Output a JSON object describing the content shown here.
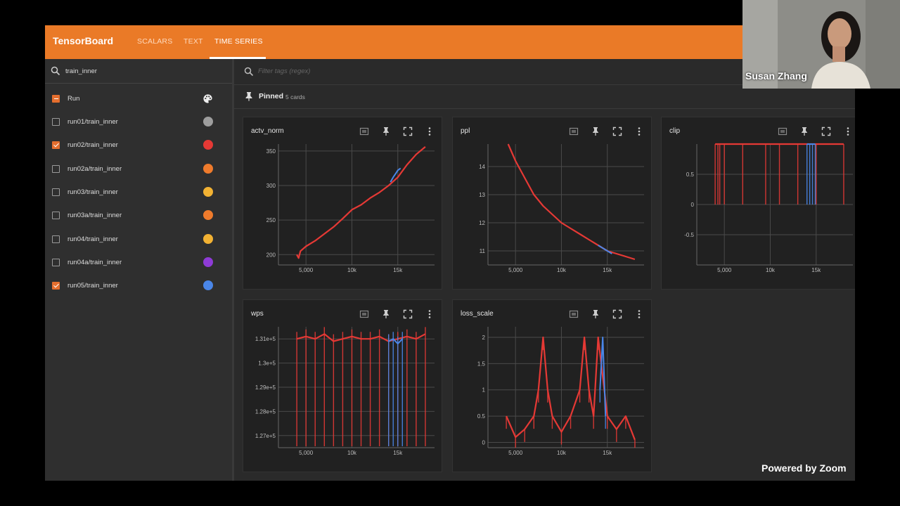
{
  "app": {
    "title": "TensorBoard",
    "tabs": [
      {
        "label": "SCALARS",
        "active": false
      },
      {
        "label": "TEXT",
        "active": false
      },
      {
        "label": "TIME SERIES",
        "active": true
      }
    ],
    "accent_color": "#ea7a27"
  },
  "sidebar": {
    "filter_value": "train_inner",
    "header_label": "Run",
    "runs": [
      {
        "label": "run01/train_inner",
        "checked": false,
        "color": "#9e9e9e"
      },
      {
        "label": "run02/train_inner",
        "checked": true,
        "color": "#e53935"
      },
      {
        "label": "run02a/train_inner",
        "checked": false,
        "color": "#ef7b2c"
      },
      {
        "label": "run03/train_inner",
        "checked": false,
        "color": "#f2b233"
      },
      {
        "label": "run03a/train_inner",
        "checked": false,
        "color": "#ef7b2c"
      },
      {
        "label": "run04/train_inner",
        "checked": false,
        "color": "#f2b233"
      },
      {
        "label": "run04a/train_inner",
        "checked": false,
        "color": "#8e3bd6"
      },
      {
        "label": "run05/train_inner",
        "checked": true,
        "color": "#4a86e8"
      }
    ]
  },
  "main": {
    "tag_filter_placeholder": "Filter tags (regex)",
    "pinned_label": "Pinned",
    "pinned_count": "5 cards"
  },
  "video": {
    "speaker_name": "Susan Zhang",
    "brand": "Powered by Zoom"
  },
  "chart_data": [
    {
      "type": "line",
      "title": "actv_norm",
      "x_ticks": [
        "5,000",
        "10k",
        "15k"
      ],
      "y_ticks": [
        "200",
        "250",
        "300",
        "350"
      ],
      "xlim": [
        2000,
        19000
      ],
      "ylim": [
        185,
        360
      ],
      "series": [
        {
          "color": "#e53935",
          "x": [
            4000,
            4200,
            4400,
            5000,
            6000,
            7000,
            8000,
            9000,
            10000,
            11000,
            12000,
            13000,
            14000,
            15000,
            16000,
            17000,
            18000
          ],
          "y": [
            200,
            195,
            205,
            212,
            220,
            230,
            240,
            252,
            265,
            272,
            282,
            290,
            300,
            312,
            330,
            345,
            356
          ]
        },
        {
          "color": "#4a86e8",
          "x": [
            14200,
            14500,
            14800,
            15000,
            15300
          ],
          "y": [
            305,
            312,
            318,
            322,
            325
          ]
        }
      ]
    },
    {
      "type": "line",
      "title": "ppl",
      "x_ticks": [
        "5,000",
        "10k",
        "15k"
      ],
      "y_ticks": [
        "11",
        "12",
        "13",
        "14"
      ],
      "xlim": [
        2000,
        19000
      ],
      "ylim": [
        10.5,
        14.8
      ],
      "series": [
        {
          "color": "#e53935",
          "x": [
            4200,
            5000,
            6000,
            7000,
            8000,
            9000,
            10000,
            11000,
            12000,
            13000,
            14000,
            15000,
            16000,
            17000,
            18000
          ],
          "y": [
            14.8,
            14.2,
            13.6,
            13.0,
            12.6,
            12.3,
            12.0,
            11.8,
            11.6,
            11.4,
            11.2,
            11.0,
            10.9,
            10.8,
            10.7
          ]
        },
        {
          "color": "#4a86e8",
          "x": [
            14000,
            14500,
            15000,
            15500
          ],
          "y": [
            11.2,
            11.1,
            11.0,
            10.9
          ]
        }
      ]
    },
    {
      "type": "line",
      "title": "clip",
      "x_ticks": [
        "5,000",
        "10k",
        "15k"
      ],
      "y_ticks": [
        "-0.5",
        "0",
        "0.5"
      ],
      "xlim": [
        2000,
        19000
      ],
      "ylim": [
        -1,
        1
      ],
      "series": [
        {
          "color": "#e53935",
          "x": [
            4000,
            4300,
            4500,
            5000,
            7000,
            9500,
            11000,
            13000,
            15000,
            18000
          ],
          "y": [
            1,
            1,
            1,
            1,
            1,
            1,
            1,
            1,
            1,
            1
          ]
        },
        {
          "color": "#4a86e8",
          "x": [
            14000,
            14300,
            14600,
            14900
          ],
          "y": [
            1,
            1,
            1,
            1
          ]
        }
      ]
    },
    {
      "type": "line",
      "title": "wps",
      "x_ticks": [
        "5,000",
        "10k",
        "15k"
      ],
      "y_ticks": [
        "1.27e+5",
        "1.28e+5",
        "1.29e+5",
        "1.3e+5",
        "1.31e+5"
      ],
      "xlim": [
        2000,
        19000
      ],
      "ylim": [
        126500,
        131500
      ],
      "series": [
        {
          "color": "#e53935",
          "x": [
            4000,
            5000,
            6000,
            7000,
            8000,
            9000,
            10000,
            11000,
            12000,
            13000,
            14000,
            15000,
            16000,
            17000,
            18000
          ],
          "y": [
            131000,
            131100,
            131000,
            131200,
            130900,
            131000,
            131100,
            131000,
            131000,
            131100,
            130900,
            131000,
            131100,
            131000,
            131200
          ]
        },
        {
          "color": "#4a86e8",
          "x": [
            14000,
            14500,
            15000,
            15500
          ],
          "y": [
            130900,
            131000,
            130800,
            131000
          ]
        }
      ]
    },
    {
      "type": "line",
      "title": "loss_scale",
      "x_ticks": [
        "5,000",
        "10k",
        "15k"
      ],
      "y_ticks": [
        "0",
        "0.5",
        "1",
        "1.5",
        "2"
      ],
      "xlim": [
        2000,
        19000
      ],
      "ylim": [
        -0.1,
        2.2
      ],
      "series": [
        {
          "color": "#e53935",
          "x": [
            4000,
            5000,
            6000,
            7000,
            7500,
            8000,
            8500,
            9000,
            10000,
            11000,
            12000,
            12500,
            13000,
            13500,
            14000,
            15000,
            16000,
            17000,
            18000
          ],
          "y": [
            0.5,
            0.1,
            0.25,
            0.5,
            1.0,
            2.0,
            1.0,
            0.5,
            0.2,
            0.5,
            1.0,
            2.0,
            1.0,
            0.5,
            2.0,
            0.5,
            0.25,
            0.5,
            0.05
          ]
        },
        {
          "color": "#4a86e8",
          "x": [
            14200,
            14500,
            14800
          ],
          "y": [
            1.0,
            2.0,
            0.5
          ]
        }
      ]
    }
  ]
}
